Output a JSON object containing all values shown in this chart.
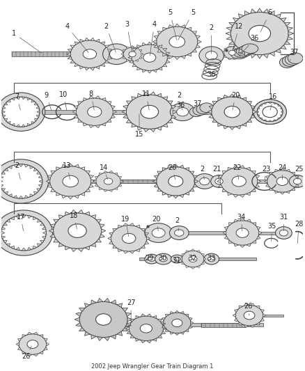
{
  "title": "2002 Jeep Wrangler Gear Train Diagram 1",
  "bg_color": "#ffffff",
  "gear_face": "#d8d8d8",
  "gear_edge": "#444444",
  "shaft_face": "#c8c8c8",
  "shaft_edge": "#444444",
  "label_color": "#222222",
  "label_fs": 7.0,
  "fig_w": 4.38,
  "fig_h": 5.33,
  "dpi": 100
}
